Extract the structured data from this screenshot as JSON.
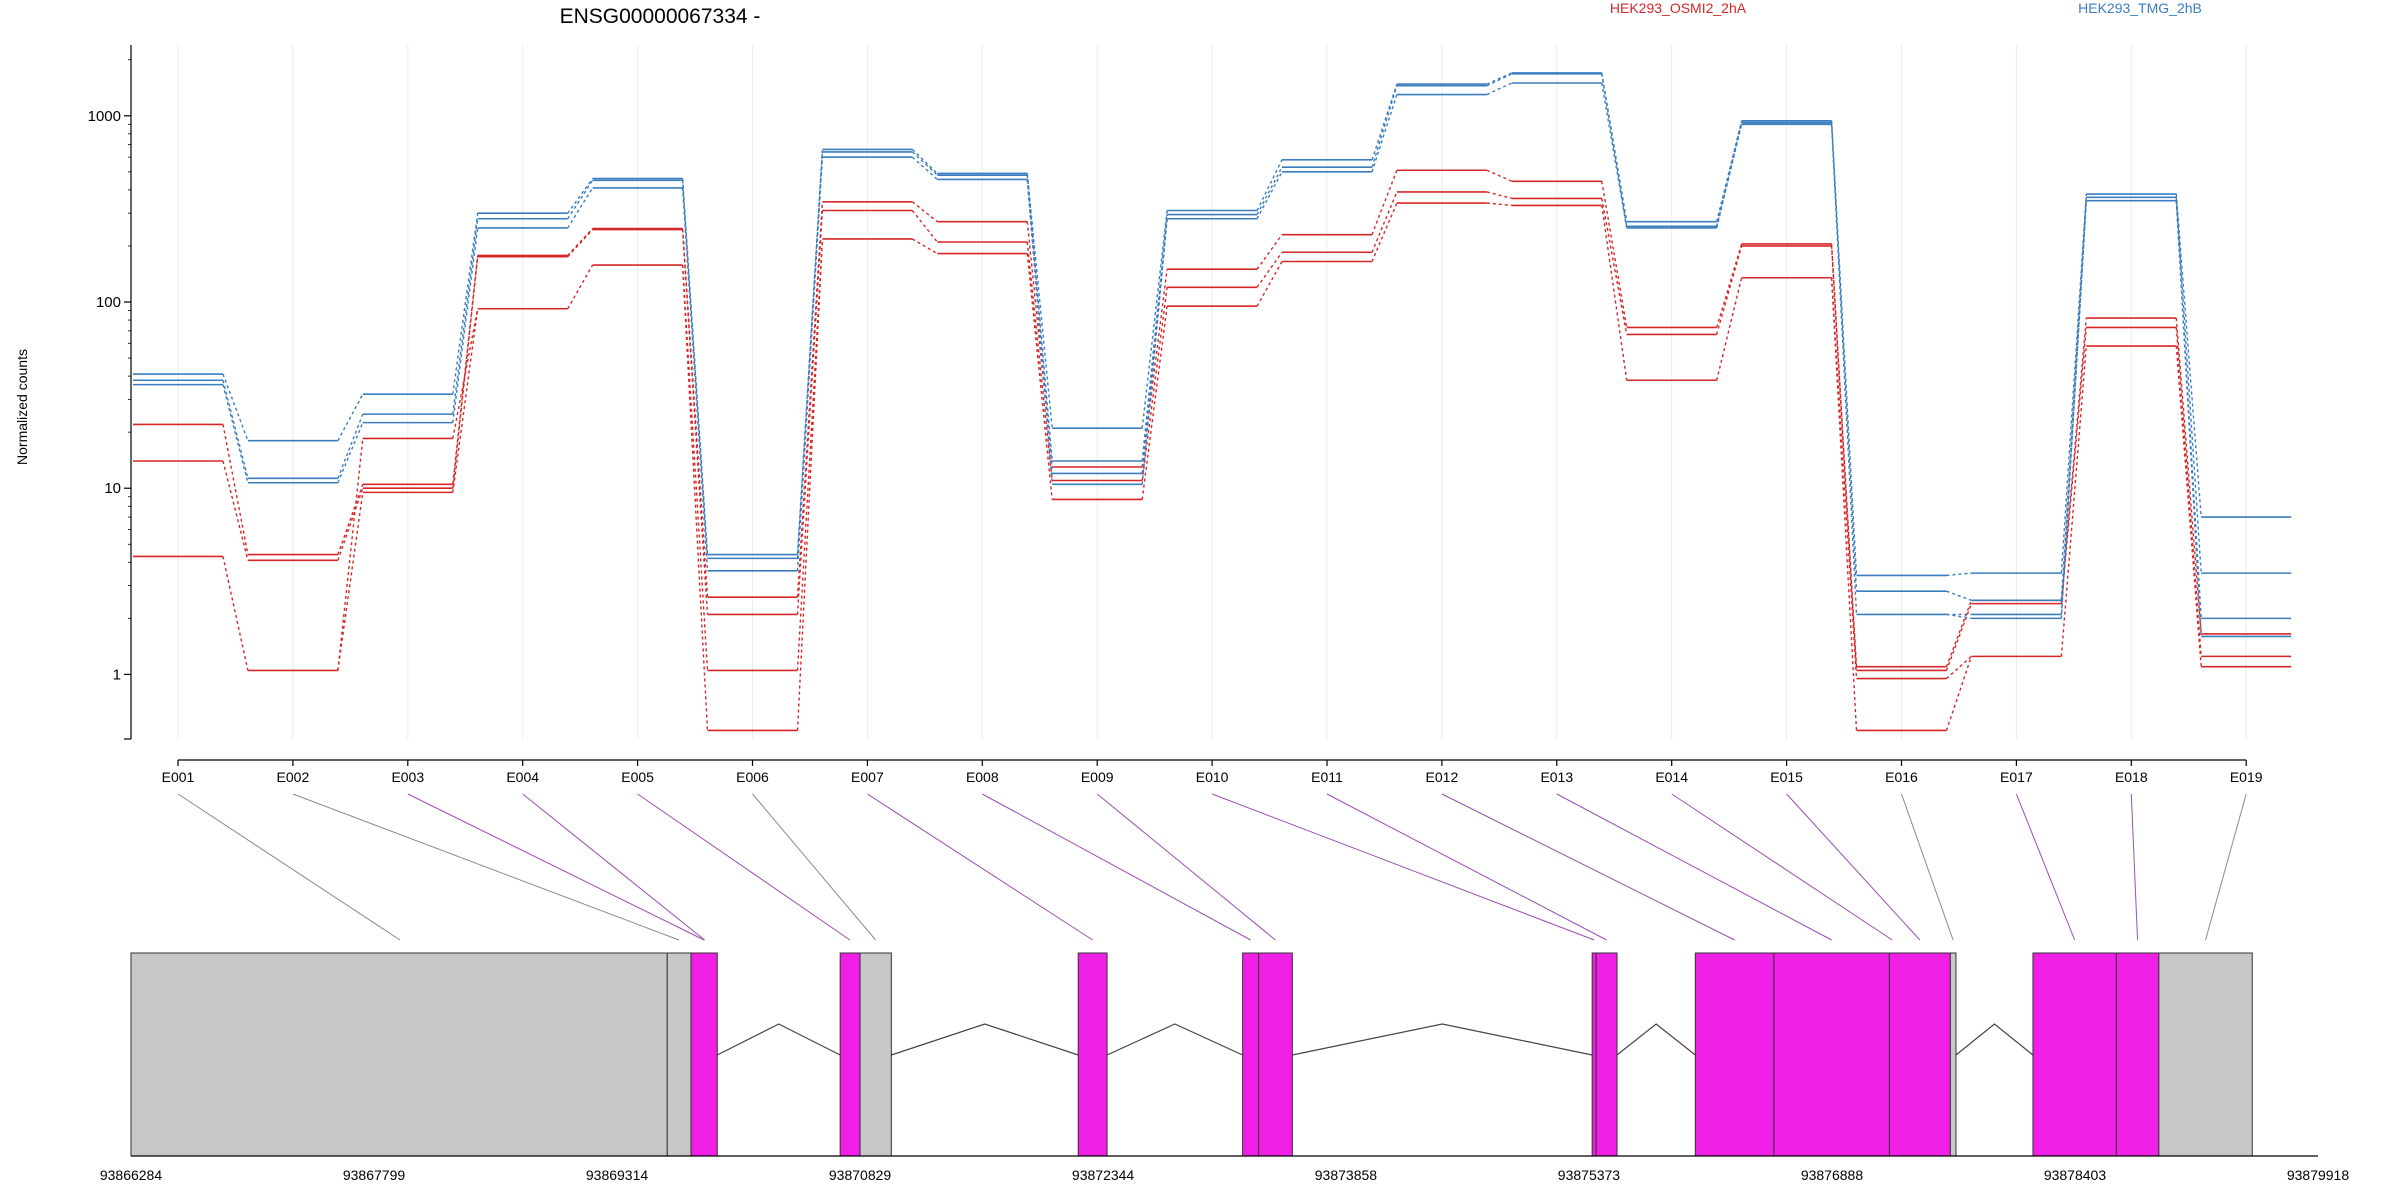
{
  "title": "ENSG00000067334 -",
  "ylabel": "Normalized counts",
  "chart_data": {
    "type": "line",
    "title": "ENSG00000067334 -",
    "ylabel": "Normalized counts",
    "yscale": "log",
    "ylim": [
      0.45,
      2400
    ],
    "yticks": [
      1,
      10,
      100,
      1000
    ],
    "ytick_labels": [
      "1",
      "10",
      "100",
      "1000"
    ],
    "categories": [
      "E001",
      "E002",
      "E003",
      "E004",
      "E005",
      "E006",
      "E007",
      "E008",
      "E009",
      "E010",
      "E011",
      "E012",
      "E013",
      "E014",
      "E015",
      "E016",
      "E017",
      "E018",
      "E019"
    ],
    "legend": [
      {
        "name": "HEK293_OSMI2_2hA",
        "color": "#d62728"
      },
      {
        "name": "HEK293_TMG_2hB",
        "color": "#3a7dbf"
      }
    ],
    "series": [
      {
        "group": 0,
        "values": [
          22,
          4.4,
          10.5,
          178,
          248,
          2.6,
          345,
          270,
          13,
          150,
          230,
          510,
          445,
          73,
          205,
          1.1,
          2.5,
          82,
          1.65
        ]
      },
      {
        "group": 0,
        "values": [
          14,
          4.1,
          10,
          175,
          245,
          2.1,
          310,
          210,
          11,
          120,
          185,
          390,
          360,
          67,
          200,
          1.05,
          2.4,
          73,
          1.25
        ]
      },
      {
        "group": 0,
        "values": [
          4.3,
          1.05,
          9.5,
          92,
          158,
          1.05,
          218,
          182,
          8.7,
          95,
          165,
          340,
          330,
          38,
          135,
          0.95,
          1.25,
          58,
          1.1
        ]
      },
      {
        "group": 0,
        "values": [
          null,
          null,
          18.5,
          null,
          null,
          0.5,
          null,
          null,
          null,
          null,
          null,
          null,
          null,
          null,
          null,
          0.5,
          null,
          null,
          null
        ]
      },
      {
        "group": 1,
        "values": [
          41,
          18,
          32,
          300,
          460,
          4.4,
          660,
          490,
          21,
          310,
          580,
          1480,
          1700,
          270,
          940,
          3.4,
          3.5,
          380,
          7
        ]
      },
      {
        "group": 1,
        "values": [
          38,
          11.3,
          25,
          280,
          450,
          4.2,
          640,
          480,
          14,
          295,
          530,
          1450,
          1680,
          255,
          920,
          2.8,
          2.5,
          365,
          3.5
        ]
      },
      {
        "group": 1,
        "values": [
          36,
          10.7,
          22.5,
          250,
          410,
          3.6,
          600,
          455,
          12,
          280,
          500,
          1300,
          1500,
          250,
          900,
          2.1,
          2.1,
          350,
          2
        ]
      },
      {
        "group": 1,
        "values": [
          null,
          null,
          null,
          null,
          null,
          null,
          null,
          null,
          10.5,
          null,
          null,
          null,
          null,
          null,
          null,
          null,
          2,
          null,
          1.6
        ]
      }
    ],
    "gene_model": {
      "coord_labels": [
        "93866284",
        "93867799",
        "93869314",
        "93870829",
        "93872344",
        "93873858",
        "93875373",
        "93876888",
        "93878403",
        "93879918"
      ],
      "colors": {
        "exon": "#f01fe6",
        "utr": "#c8c8c8"
      },
      "blocks": [
        {
          "start": 93866284,
          "end": 93869627,
          "type": "utr"
        },
        {
          "start": 93869627,
          "end": 93869775,
          "type": "utr"
        },
        {
          "start": 93869775,
          "end": 93869939,
          "type": "exon"
        },
        {
          "start": 93870705,
          "end": 93870829,
          "type": "exon"
        },
        {
          "start": 93870829,
          "end": 93871024,
          "type": "utr"
        },
        {
          "start": 93872189,
          "end": 93872369,
          "type": "exon"
        },
        {
          "start": 93873214,
          "end": 93873314,
          "type": "exon"
        },
        {
          "start": 93873314,
          "end": 93873524,
          "type": "exon"
        },
        {
          "start": 93875393,
          "end": 93875418,
          "type": "exon"
        },
        {
          "start": 93875418,
          "end": 93875548,
          "type": "exon"
        },
        {
          "start": 93876036,
          "end": 93876526,
          "type": "exon"
        },
        {
          "start": 93876526,
          "end": 93877246,
          "type": "exon"
        },
        {
          "start": 93877246,
          "end": 93877626,
          "type": "exon"
        },
        {
          "start": 93877626,
          "end": 93877661,
          "type": "utr"
        },
        {
          "start": 93878141,
          "end": 93878661,
          "type": "exon"
        },
        {
          "start": 93878661,
          "end": 93878926,
          "type": "exon"
        },
        {
          "start": 93878926,
          "end": 93879508,
          "type": "utr"
        }
      ],
      "introns": [
        [
          93869939,
          93870705
        ],
        [
          93871024,
          93872189
        ],
        [
          93872369,
          93873214
        ],
        [
          93873524,
          93875393
        ],
        [
          93875548,
          93876036
        ],
        [
          93877661,
          93878141
        ]
      ],
      "bin_targets": [
        {
          "pos": 93867961,
          "type": "utr"
        },
        {
          "pos": 93869700,
          "type": "utr"
        },
        {
          "pos": 93869857,
          "type": "exon"
        },
        {
          "pos": 93869860,
          "type": "exon"
        },
        {
          "pos": 93870766,
          "type": "exon"
        },
        {
          "pos": 93870926,
          "type": "utr"
        },
        {
          "pos": 93872279,
          "type": "exon"
        },
        {
          "pos": 93873264,
          "type": "exon"
        },
        {
          "pos": 93873419,
          "type": "exon"
        },
        {
          "pos": 93875406,
          "type": "exon"
        },
        {
          "pos": 93875483,
          "type": "exon"
        },
        {
          "pos": 93876281,
          "type": "exon"
        },
        {
          "pos": 93876886,
          "type": "exon"
        },
        {
          "pos": 93877264,
          "type": "exon"
        },
        {
          "pos": 93877436,
          "type": "exon"
        },
        {
          "pos": 93877643,
          "type": "utr"
        },
        {
          "pos": 93878401,
          "type": "exon"
        },
        {
          "pos": 93878793,
          "type": "exon"
        },
        {
          "pos": 93879217,
          "type": "utr"
        }
      ]
    }
  }
}
